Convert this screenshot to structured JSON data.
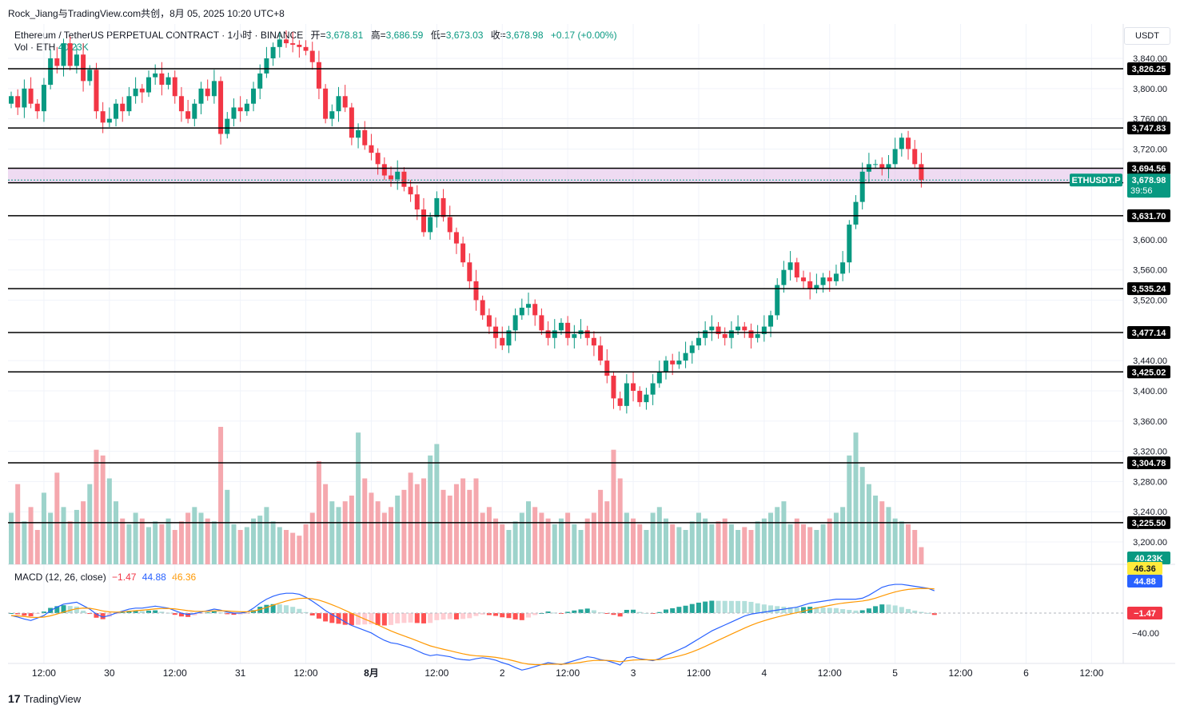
{
  "header": {
    "author_line": "Rock_Jiang与TradingView.com共创，8月 05, 2025 10:20 UTC+8"
  },
  "legend": {
    "symbol": "Ethereum / TetherUS PERPETUAL CONTRACT · 1小时 · BINANCE",
    "open_label": "开=",
    "open": "3,678.81",
    "high_label": "高=",
    "high": "3,686.59",
    "low_label": "低=",
    "low": "3,673.03",
    "close_label": "收=",
    "close": "3,678.98",
    "change": "+0.17 (+0.00%)",
    "vol_label": "Vol · ETH",
    "vol": "40.23K"
  },
  "currency_button": "USDT",
  "macd_legend": {
    "label": "MACD (12, 26, close)",
    "hist": "−1.47",
    "macd": "44.88",
    "signal": "46.36",
    "hist_color": "#f23645",
    "macd_color": "#2962ff",
    "signal_color": "#ff9800"
  },
  "footer": {
    "brand": "TradingView"
  },
  "colors": {
    "up": "#089981",
    "down": "#f23645",
    "zone": "#e1bee7"
  },
  "chart_data": {
    "type": "candlestick",
    "y_axis": {
      "min": 3180,
      "max": 3850,
      "ticks": [
        "3,840.00",
        "3,800.00",
        "3,760.00",
        "3,720.00",
        "3,600.00",
        "3,560.00",
        "3,520.00",
        "3,440.00",
        "3,400.00",
        "3,360.00",
        "3,320.00",
        "3,280.00",
        "3,240.00",
        "3,200.00"
      ],
      "tick_values": [
        3840,
        3800,
        3760,
        3720,
        3600,
        3560,
        3520,
        3440,
        3400,
        3360,
        3320,
        3280,
        3240,
        3200
      ]
    },
    "x_axis": {
      "labels": [
        "12:00",
        "30",
        "12:00",
        "31",
        "12:00",
        "8月",
        "12:00",
        "2",
        "12:00",
        "3",
        "12:00",
        "4",
        "12:00",
        "5",
        "12:00",
        "6",
        "12:00"
      ],
      "label_bar_index": [
        5,
        15,
        25,
        35,
        45,
        55,
        65,
        75,
        85,
        95,
        105,
        115,
        125,
        135,
        145,
        155,
        165
      ]
    },
    "levels": [
      {
        "value": 3826.25,
        "label": "3,826.25"
      },
      {
        "value": 3747.83,
        "label": "3,747.83"
      },
      {
        "value": 3694.56,
        "label": "3,694.56"
      },
      {
        "value": 3675.35,
        "label": "3,675.35"
      },
      {
        "value": 3631.7,
        "label": "3,631.70"
      },
      {
        "value": 3535.24,
        "label": "3,535.24"
      },
      {
        "value": 3477.14,
        "label": "3,477.14"
      },
      {
        "value": 3425.02,
        "label": "3,425.02"
      },
      {
        "value": 3304.78,
        "label": "3,304.78"
      },
      {
        "value": 3225.5,
        "label": "3,225.50"
      }
    ],
    "zone": [
      3675.35,
      3694.56
    ],
    "last_price": {
      "symbol": "ETHUSDT.P",
      "value": 3678.98,
      "label": "3,678.98",
      "countdown": "39:56"
    },
    "volume_label": "40.23K",
    "macd_axis": {
      "tick": "−40.00",
      "tick_value": -40,
      "labels": [
        "46.36",
        "44.88",
        "−1.47"
      ],
      "label_values": [
        46.36,
        44.88,
        -1.47
      ]
    },
    "closes": [
      3790,
      3775,
      3800,
      3780,
      3770,
      3805,
      3840,
      3830,
      3860,
      3830,
      3845,
      3810,
      3825,
      3770,
      3755,
      3760,
      3780,
      3770,
      3790,
      3800,
      3795,
      3815,
      3820,
      3805,
      3815,
      3790,
      3770,
      3760,
      3780,
      3800,
      3790,
      3810,
      3740,
      3760,
      3775,
      3770,
      3780,
      3800,
      3820,
      3840,
      3855,
      3865,
      3860,
      3858,
      3855,
      3850,
      3835,
      3800,
      3760,
      3770,
      3790,
      3775,
      3735,
      3745,
      3725,
      3715,
      3700,
      3685,
      3680,
      3690,
      3670,
      3660,
      3640,
      3610,
      3630,
      3655,
      3630,
      3610,
      3595,
      3570,
      3545,
      3520,
      3500,
      3485,
      3470,
      3460,
      3480,
      3500,
      3510,
      3515,
      3500,
      3480,
      3470,
      3480,
      3490,
      3470,
      3475,
      3480,
      3470,
      3460,
      3440,
      3420,
      3390,
      3380,
      3410,
      3400,
      3385,
      3395,
      3410,
      3425,
      3440,
      3435,
      3440,
      3450,
      3460,
      3470,
      3480,
      3485,
      3475,
      3470,
      3480,
      3485,
      3480,
      3470,
      3475,
      3485,
      3500,
      3540,
      3560,
      3570,
      3550,
      3545,
      3535,
      3540,
      3550,
      3545,
      3555,
      3570,
      3620,
      3650,
      3690,
      3700,
      3700,
      3695,
      3700,
      3720,
      3735,
      3720,
      3700,
      3679
    ],
    "volume": [
      18000,
      28000,
      15000,
      20000,
      12000,
      25000,
      18000,
      32000,
      20000,
      15000,
      19000,
      22000,
      28000,
      40000,
      38000,
      30000,
      22000,
      16000,
      14000,
      18000,
      16000,
      13000,
      15000,
      14000,
      16000,
      12000,
      15000,
      18000,
      20000,
      18000,
      16000,
      15000,
      48000,
      26000,
      14000,
      12000,
      13000,
      16000,
      17000,
      20000,
      15000,
      13000,
      12000,
      11000,
      10000,
      14000,
      18000,
      36000,
      28000,
      22000,
      20000,
      22000,
      24000,
      46000,
      30000,
      25000,
      22000,
      18000,
      20000,
      24000,
      26000,
      32000,
      28000,
      30000,
      38000,
      42000,
      26000,
      24000,
      28000,
      30000,
      26000,
      30000,
      18000,
      20000,
      16000,
      14000,
      12000,
      15000,
      18000,
      22000,
      20000,
      18000,
      16000,
      14000,
      16000,
      18000,
      14000,
      12000,
      16000,
      18000,
      26000,
      22000,
      40000,
      30000,
      18000,
      16000,
      14000,
      12000,
      18000,
      20000,
      16000,
      14000,
      13000,
      12000,
      15000,
      18000,
      16000,
      14000,
      15000,
      16000,
      14000,
      12000,
      13000,
      12000,
      15000,
      16000,
      18000,
      20000,
      22000,
      14000,
      16000,
      14000,
      13000,
      12000,
      14000,
      16000,
      18000,
      20000,
      38000,
      46000,
      34000,
      28000,
      24000,
      22000,
      20000,
      16000,
      15000,
      14000,
      12000,
      6000
    ],
    "macd": [
      -5,
      -8,
      -12,
      -15,
      -10,
      -5,
      5,
      12,
      18,
      20,
      22,
      15,
      8,
      -2,
      -8,
      -5,
      0,
      4,
      8,
      10,
      10,
      12,
      14,
      12,
      10,
      5,
      0,
      -3,
      -1,
      2,
      5,
      8,
      6,
      2,
      0,
      0,
      2,
      10,
      20,
      28,
      34,
      38,
      40,
      40,
      38,
      32,
      24,
      15,
      5,
      -3,
      -10,
      -18,
      -25,
      -30,
      -35,
      -40,
      -48,
      -55,
      -60,
      -62,
      -66,
      -70,
      -76,
      -82,
      -86,
      -84,
      -86,
      -88,
      -92,
      -94,
      -95,
      -92,
      -90,
      -92,
      -95,
      -100,
      -104,
      -110,
      -115,
      -112,
      -108,
      -104,
      -100,
      -102,
      -104,
      -100,
      -96,
      -92,
      -88,
      -90,
      -94,
      -96,
      -100,
      -105,
      -90,
      -88,
      -92,
      -94,
      -96,
      -92,
      -85,
      -80,
      -74,
      -68,
      -60,
      -52,
      -44,
      -36,
      -30,
      -24,
      -18,
      -12,
      -6,
      -2,
      0,
      2,
      4,
      6,
      8,
      10,
      12,
      16,
      20,
      22,
      24,
      26,
      28,
      28,
      28,
      28,
      30,
      36,
      44,
      52,
      56,
      58,
      58,
      56,
      54,
      52,
      50,
      45
    ]
  }
}
